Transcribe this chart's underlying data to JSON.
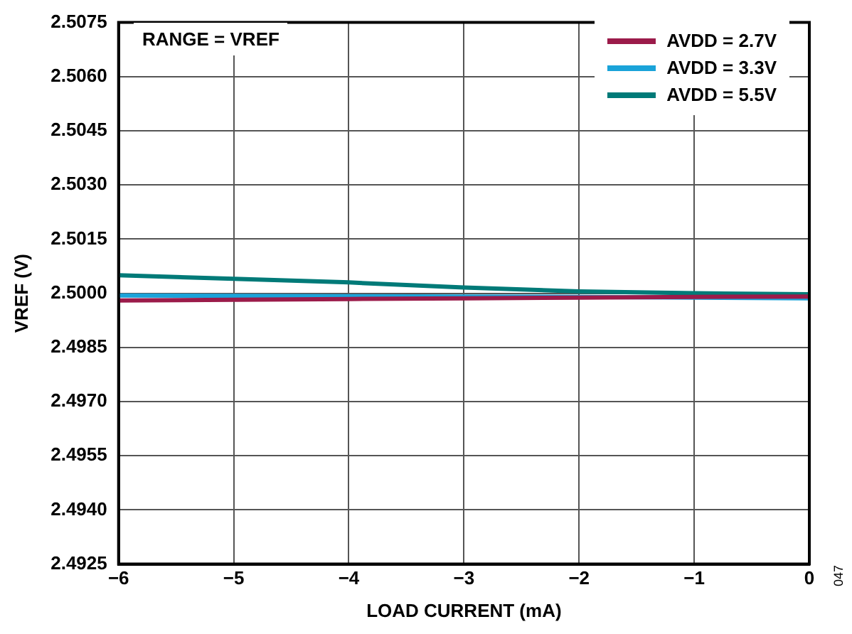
{
  "chart_data": {
    "type": "line",
    "xlabel": "LOAD CURRENT (mA)",
    "ylabel": "VREF (V)",
    "x": [
      -6,
      -5,
      -4,
      -3,
      -2,
      -1,
      0
    ],
    "series": [
      {
        "name": "AVDD = 2.7V",
        "color": "#9b1b4a",
        "values": [
          2.4998,
          2.49982,
          2.49984,
          2.49986,
          2.49988,
          2.4999,
          2.49991
        ]
      },
      {
        "name": "AVDD = 3.3V",
        "color": "#1aa3d9",
        "values": [
          2.49994,
          2.49993,
          2.49992,
          2.49991,
          2.4999,
          2.49988,
          2.49986
        ]
      },
      {
        "name": "AVDD = 5.5V",
        "color": "#007a78",
        "values": [
          2.5005,
          2.5004,
          2.5003,
          2.50016,
          2.50005,
          2.5,
          2.49997
        ]
      }
    ],
    "xlim": [
      -6,
      0
    ],
    "xticks": [
      -6,
      -5,
      -4,
      -3,
      -2,
      -1,
      0
    ],
    "ylim": [
      2.4925,
      2.5075
    ],
    "yticks": [
      {
        "value": 2.4925,
        "label": "2.4925"
      },
      {
        "value": 2.494,
        "label": "2.4940"
      },
      {
        "value": 2.4955,
        "label": "2.4955"
      },
      {
        "value": 2.497,
        "label": "2.4970"
      },
      {
        "value": 2.4985,
        "label": "2.4985"
      },
      {
        "value": 2.5,
        "label": "2.5000"
      },
      {
        "value": 2.5015,
        "label": "2.5015"
      },
      {
        "value": 2.503,
        "label": "2.5030"
      },
      {
        "value": 2.5045,
        "label": "2.5045"
      },
      {
        "value": 2.506,
        "label": "2.5060"
      },
      {
        "value": 2.5075,
        "label": "2.5075"
      }
    ],
    "grid": true,
    "legend": "top right",
    "marker": "none",
    "line_style": "solid",
    "annotations": [
      "RANGE = VREF",
      "047"
    ]
  }
}
